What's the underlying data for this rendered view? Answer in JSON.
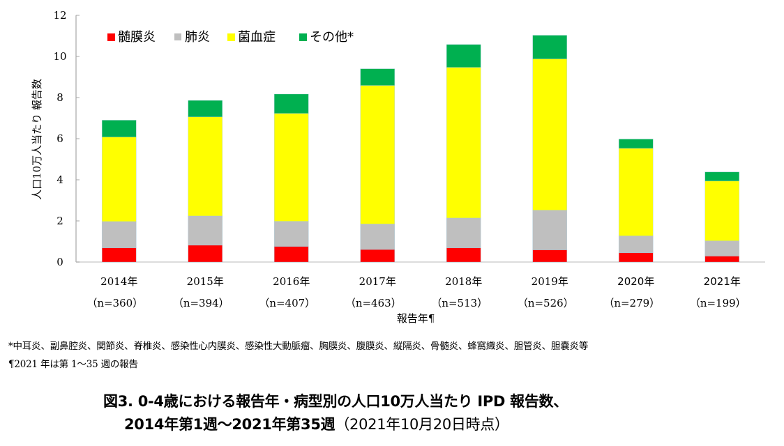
{
  "chart_data": {
    "type": "bar",
    "stacked": true,
    "title": "図3. 0-4歳における報告年・病型別の人口10万人当たり IPD 報告数、",
    "subtitle": "2014年第1週～2021年第35週",
    "subtitle_note": "（2021年10月20日時点）",
    "xlabel": "報告年¶",
    "ylabel": "人口10万人当たり 報告数",
    "ylim": [
      0,
      12
    ],
    "yticks": [
      0,
      2,
      4,
      6,
      8,
      10,
      12
    ],
    "grid": false,
    "legend_position": "top-left",
    "categories": [
      "2014年",
      "2015年",
      "2016年",
      "2017年",
      "2018年",
      "2019年",
      "2020年",
      "2021年"
    ],
    "category_counts": [
      "（n=360）",
      "（n=394）",
      "（n=407）",
      "（n=463）",
      "（n=513）",
      "（n=526）",
      "（n=279）",
      "（n=199）"
    ],
    "series": [
      {
        "name": "髄膜炎",
        "color": "#ff0000",
        "values": [
          0.69,
          0.82,
          0.76,
          0.61,
          0.69,
          0.59,
          0.45,
          0.29
        ]
      },
      {
        "name": "肺炎",
        "color": "#bfbfbf",
        "values": [
          1.28,
          1.42,
          1.22,
          1.24,
          1.45,
          1.93,
          0.82,
          0.74
        ]
      },
      {
        "name": "菌血症",
        "color": "#ffff00",
        "values": [
          4.11,
          4.82,
          5.25,
          6.74,
          7.33,
          7.36,
          4.26,
          2.91
        ]
      },
      {
        "name": "その他*",
        "color": "#00b050",
        "values": [
          0.82,
          0.8,
          0.94,
          0.81,
          1.11,
          1.15,
          0.45,
          0.44
        ]
      }
    ]
  },
  "footnotes": {
    "other": "*中耳炎、副鼻腔炎、関節炎、脊椎炎、感染性心内膜炎、感染性大動脈瘤、胸膜炎、腹膜炎、縦隔炎、骨髄炎、蜂窩織炎、胆管炎、胆嚢炎等",
    "year_note": "¶2021 年は第 1～35 週の報告"
  }
}
